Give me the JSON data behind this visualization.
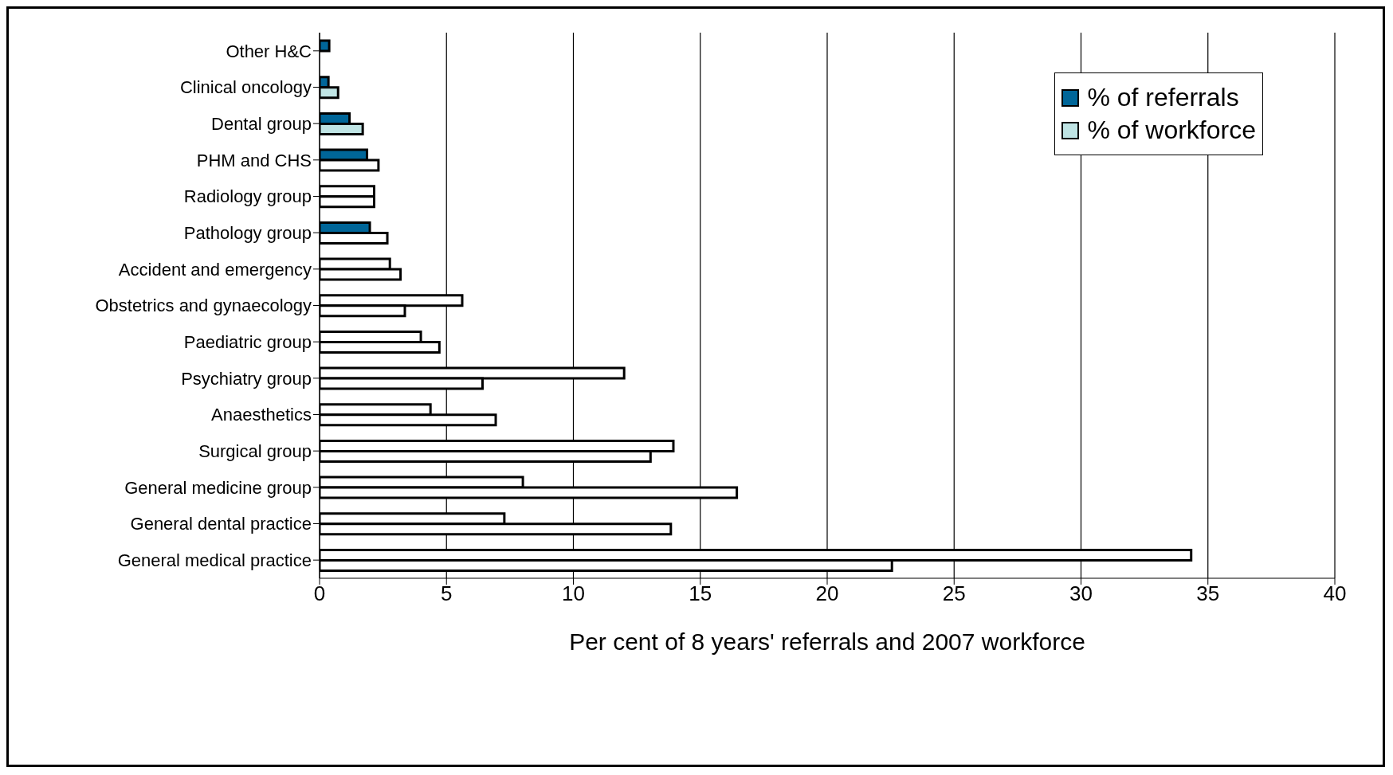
{
  "chart_data": {
    "type": "bar",
    "orientation": "horizontal",
    "xlabel": "Per cent of  8 years' referrals and 2007 workforce",
    "categories": [
      "Other H&C",
      "Clinical oncology",
      "Dental group",
      "PHM and CHS",
      "Radiology group",
      "Pathology group",
      "Accident and emergency",
      "Obstetrics and gynaecology",
      "Paediatric group",
      "Psychiatry group",
      "Anaesthetics",
      "Surgical group",
      "General medicine group",
      "General dental practice",
      "General medical practice"
    ],
    "series": [
      {
        "name": "% of referrals",
        "color": "#006699",
        "colors": [
          "#006699",
          "#006699",
          "#006699",
          "#006699",
          "#ffffff",
          "#006699",
          "#ffffff",
          "#ffffff",
          "#ffffff",
          "#ffffff",
          "#ffffff",
          "#ffffff",
          "#ffffff",
          "#ffffff",
          "#ffffff"
        ],
        "values": [
          0.38,
          0.35,
          1.18,
          1.87,
          2.15,
          1.98,
          2.77,
          5.62,
          3.99,
          12.0,
          4.37,
          13.94,
          8.01,
          7.28,
          34.34
        ]
      },
      {
        "name": "% of workforce",
        "color": "#bfe4e4",
        "colors": [
          null,
          "#bfe4e4",
          "#bfe4e4",
          "#ffffff",
          "#ffffff",
          "#ffffff",
          "#ffffff",
          "#ffffff",
          "#ffffff",
          "#ffffff",
          "#ffffff",
          "#ffffff",
          "#ffffff",
          "#ffffff",
          "#ffffff"
        ],
        "values": [
          null,
          0.73,
          1.7,
          2.32,
          2.15,
          2.67,
          3.19,
          3.36,
          4.72,
          6.42,
          6.94,
          13.04,
          16.44,
          13.84,
          22.55
        ]
      }
    ],
    "xlim": [
      0,
      40
    ],
    "xticks": [
      0,
      5,
      10,
      15,
      20,
      25,
      30,
      35,
      40
    ],
    "grid": "x",
    "legend": "top right"
  }
}
